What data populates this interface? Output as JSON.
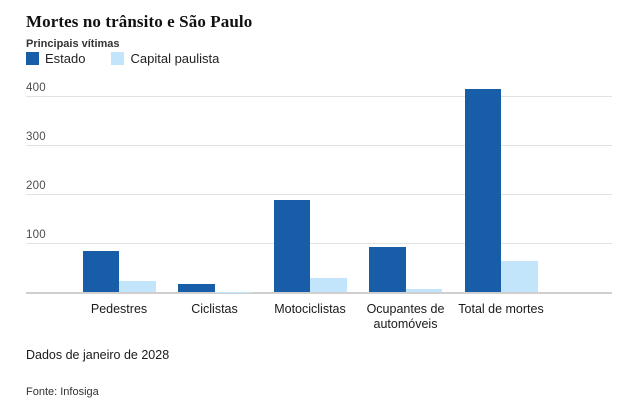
{
  "header": {
    "title": "Mortes no trânsito e São Paulo",
    "subtitle": "Principais vítimas"
  },
  "legend": {
    "items": [
      {
        "label": "Estado",
        "color": "#185da7"
      },
      {
        "label": "Capital paulista",
        "color": "#c3e5fb"
      }
    ]
  },
  "chart_data": {
    "type": "bar",
    "title": "Mortes no trânsito e São Paulo",
    "subtitle": "Principais vítimas",
    "categories": [
      "Pedestres",
      "Ciclistas",
      "Motociclistas",
      "Ocupantes de automóveis",
      "Total de mortes"
    ],
    "series": [
      {
        "name": "Estado",
        "color": "#185da7",
        "values": [
          85,
          18,
          188,
          92,
          415
        ]
      },
      {
        "name": "Capital paulista",
        "color": "#c3e5fb",
        "values": [
          24,
          2,
          29,
          7,
          65
        ]
      }
    ],
    "xlabel": "",
    "ylabel": "",
    "ylim": [
      0,
      420
    ],
    "yticks": [
      100,
      200,
      300,
      400
    ],
    "grid": true,
    "legend_position": "top-left"
  },
  "footer": {
    "note": "Dados de janeiro de 2028",
    "source": "Fonte: Infosiga"
  }
}
